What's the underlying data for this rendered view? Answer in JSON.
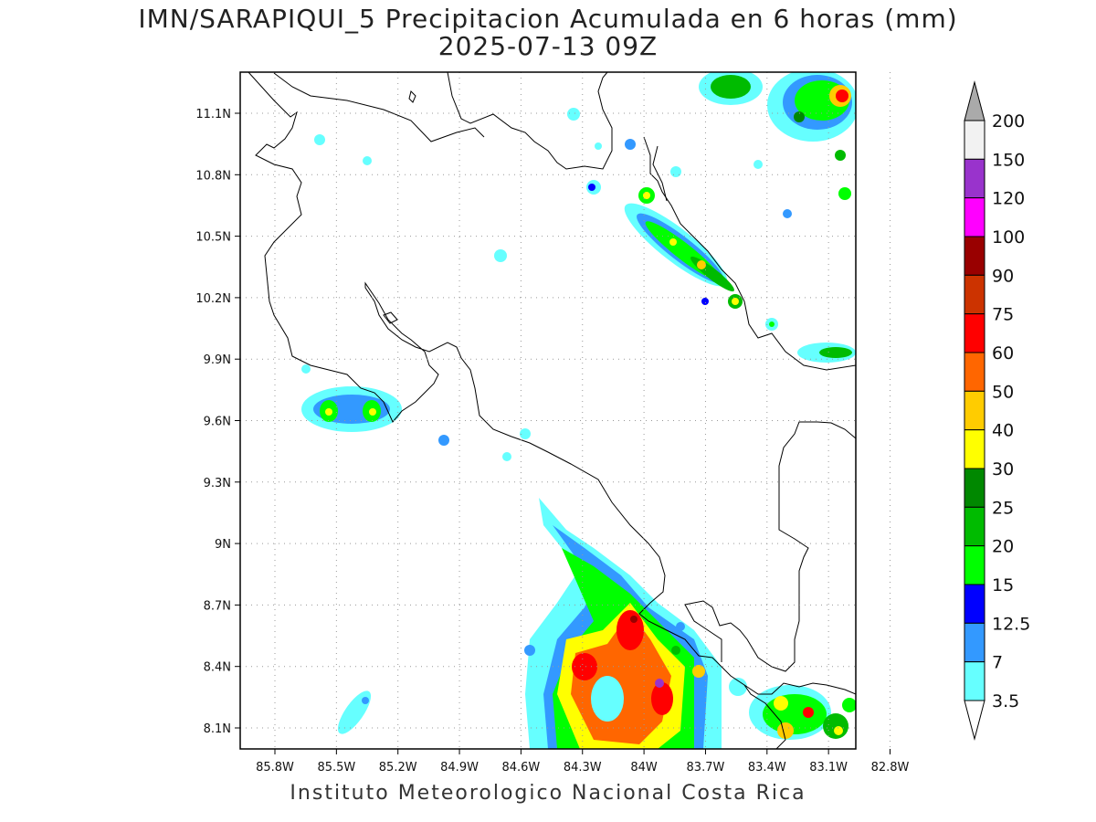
{
  "title": {
    "line1": "IMN/SARAPIQUI_5 Precipitacion Acumulada en 6 horas (mm)",
    "line2": "2025-07-13 09Z"
  },
  "footer": "Instituto Meteorologico Nacional Costa Rica",
  "map": {
    "lon_labels": [
      "85.8W",
      "85.5W",
      "85.2W",
      "84.9W",
      "84.6W",
      "84.3W",
      "84W",
      "83.7W",
      "83.4W",
      "83.1W",
      "82.8W"
    ],
    "lat_labels": [
      "11.1N",
      "10.8N",
      "10.5N",
      "10.2N",
      "9.9N",
      "9.6N",
      "9.3N",
      "9N",
      "8.7N",
      "8.4N",
      "8.1N"
    ],
    "grid": "dotted"
  },
  "colorbar": {
    "labels": [
      "200",
      "150",
      "120",
      "100",
      "90",
      "75",
      "60",
      "50",
      "40",
      "30",
      "25",
      "20",
      "15",
      "12.5",
      "7",
      "3.5"
    ],
    "colors": [
      "#aaaaaa",
      "#f2f2f2",
      "#9933cc",
      "#ff00ff",
      "#990000",
      "#cc3300",
      "#ff0000",
      "#ff6600",
      "#ffcc00",
      "#ffff00",
      "#008800",
      "#00bb00",
      "#00ff00",
      "#0000ff",
      "#3399ff",
      "#66ffff",
      "#ffffff"
    ]
  }
}
